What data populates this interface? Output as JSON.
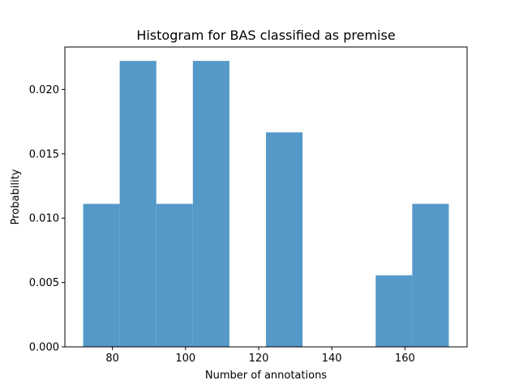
{
  "chart_data": {
    "type": "bar",
    "title": "Histogram for BAS classified as premise",
    "xlabel": "Number of annotations",
    "ylabel": "Probability",
    "xlim": [
      67,
      177
    ],
    "ylim": [
      0,
      0.0233
    ],
    "bar_color": "#5599c8",
    "bins": [
      {
        "x0": 72,
        "x1": 82,
        "value": 0.01111
      },
      {
        "x0": 82,
        "x1": 92,
        "value": 0.02222
      },
      {
        "x0": 92,
        "x1": 102,
        "value": 0.01111
      },
      {
        "x0": 102,
        "x1": 112,
        "value": 0.02222
      },
      {
        "x0": 112,
        "x1": 122,
        "value": 0
      },
      {
        "x0": 122,
        "x1": 132,
        "value": 0.01667
      },
      {
        "x0": 132,
        "x1": 142,
        "value": 0
      },
      {
        "x0": 142,
        "x1": 152,
        "value": 0
      },
      {
        "x0": 152,
        "x1": 162,
        "value": 0.00556
      },
      {
        "x0": 162,
        "x1": 172,
        "value": 0.01111
      }
    ],
    "x_ticks": [
      {
        "value": 80,
        "label": "80"
      },
      {
        "value": 100,
        "label": "100"
      },
      {
        "value": 120,
        "label": "120"
      },
      {
        "value": 140,
        "label": "140"
      },
      {
        "value": 160,
        "label": "160"
      }
    ],
    "y_ticks": [
      {
        "value": 0,
        "label": "0.000"
      },
      {
        "value": 0.005,
        "label": "0.005"
      },
      {
        "value": 0.01,
        "label": "0.010"
      },
      {
        "value": 0.015,
        "label": "0.015"
      },
      {
        "value": 0.02,
        "label": "0.020"
      }
    ]
  }
}
